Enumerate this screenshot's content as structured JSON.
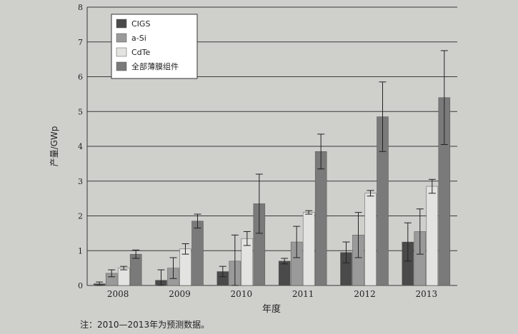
{
  "chart_data": {
    "type": "bar",
    "categories": [
      "2008",
      "2009",
      "2010",
      "2011",
      "2012",
      "2013"
    ],
    "series": [
      {
        "name": "CIGS",
        "values": [
          0.05,
          0.15,
          0.4,
          0.7,
          0.95,
          1.25
        ],
        "err": [
          0.05,
          0.3,
          0.15,
          0.08,
          0.3,
          0.55
        ],
        "color": "#4a4a4a"
      },
      {
        "name": "a-Si",
        "values": [
          0.35,
          0.5,
          0.7,
          1.25,
          1.45,
          1.55
        ],
        "err": [
          0.1,
          0.3,
          0.75,
          0.45,
          0.65,
          0.65
        ],
        "color": "#9a9a9a"
      },
      {
        "name": "CdTe",
        "values": [
          0.5,
          1.05,
          1.35,
          2.1,
          2.65,
          2.85
        ],
        "err": [
          0.05,
          0.15,
          0.2,
          0.05,
          0.08,
          0.2
        ],
        "color": "#e3e3e1"
      },
      {
        "name": "全部薄膜组件",
        "values": [
          0.9,
          1.85,
          2.35,
          3.85,
          4.85,
          5.4
        ],
        "err": [
          0.12,
          0.2,
          0.85,
          0.5,
          1.0,
          1.35
        ],
        "color": "#7a7a7a"
      }
    ],
    "ylabel": "产量/GWp",
    "xlabel": "年度",
    "ylim": [
      0,
      8
    ],
    "yticks": [
      0,
      1,
      2,
      3,
      4,
      5,
      6,
      7,
      8
    ],
    "grid": true,
    "legend": "top-left"
  },
  "note": "注：2010—2013年为预测数据。"
}
